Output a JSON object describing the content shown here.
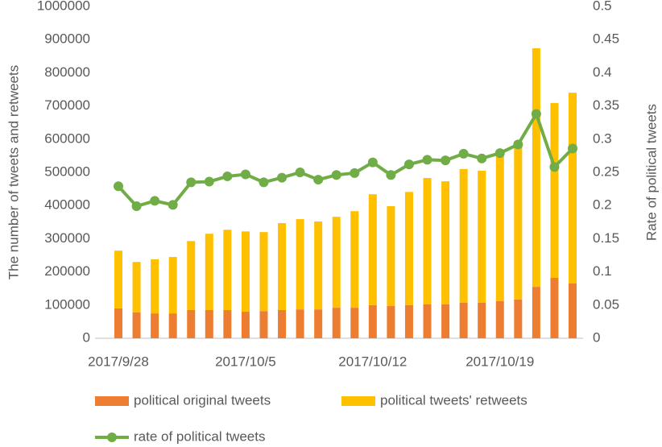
{
  "chart_data": {
    "type": "bar-line",
    "categories": [
      "2017/9/28",
      null,
      null,
      null,
      null,
      null,
      null,
      "2017/10/5",
      null,
      null,
      null,
      null,
      null,
      null,
      "2017/10/12",
      null,
      null,
      null,
      null,
      null,
      null,
      "2017/10/19",
      null,
      null,
      null,
      null
    ],
    "series": [
      {
        "name": "political original tweets",
        "type": "bar",
        "color": "#ed7d31",
        "values": [
          90000,
          78000,
          75000,
          75000,
          85000,
          85000,
          85000,
          80000,
          82000,
          85000,
          87000,
          87000,
          92000,
          92000,
          100000,
          97000,
          100000,
          102000,
          102000,
          107000,
          107000,
          112000,
          117000,
          155000,
          182000,
          165000
        ]
      },
      {
        "name": "political tweets' retweets",
        "type": "bar",
        "color": "#ffc000",
        "values": [
          174000,
          152000,
          163000,
          170000,
          208000,
          230000,
          242000,
          242000,
          238000,
          262000,
          272000,
          265000,
          274000,
          291000,
          334000,
          301000,
          341000,
          381000,
          371000,
          403000,
          398000,
          441000,
          470000,
          719000,
          527000,
          575000
        ]
      },
      {
        "name": "rate of political tweets",
        "type": "line",
        "axis": "y2",
        "color": "#70ad47",
        "values": [
          0.229,
          0.199,
          0.207,
          0.201,
          0.235,
          0.236,
          0.244,
          0.247,
          0.235,
          0.242,
          0.25,
          0.239,
          0.246,
          0.249,
          0.265,
          0.246,
          0.262,
          0.269,
          0.268,
          0.278,
          0.271,
          0.279,
          0.292,
          0.338,
          0.258,
          0.286
        ]
      }
    ],
    "ylabel": "The number of tweets and retweets",
    "y2label": "Rate of political tweets",
    "ylim": [
      0,
      1000000
    ],
    "yticks": [
      0,
      100000,
      200000,
      300000,
      400000,
      500000,
      600000,
      700000,
      800000,
      900000,
      1000000
    ],
    "y2lim": [
      0,
      0.5
    ],
    "y2ticks": [
      0,
      0.05,
      0.1,
      0.15,
      0.2,
      0.25,
      0.3,
      0.35,
      0.4,
      0.45,
      0.5
    ],
    "stacked": true,
    "legend": "bottom"
  }
}
